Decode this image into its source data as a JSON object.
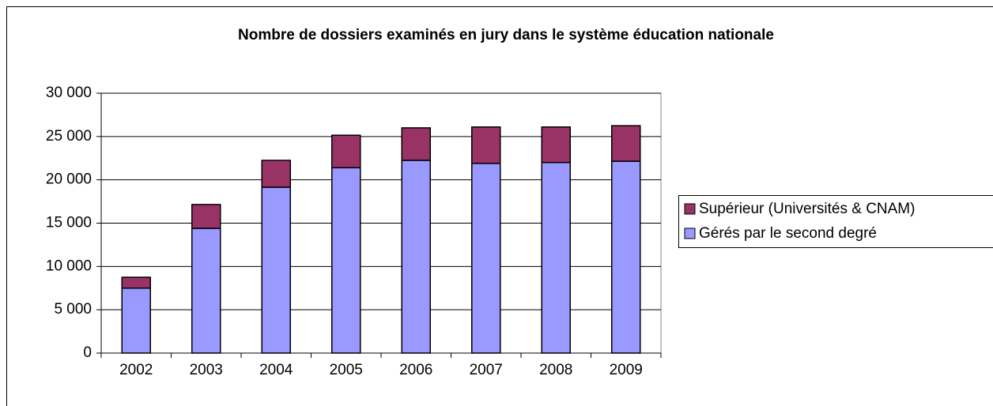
{
  "chart_data": {
    "type": "stacked_bar",
    "title": "Nombre de dossiers examinés en jury dans le système éducation nationale",
    "categories": [
      "2002",
      "2003",
      "2004",
      "2005",
      "2006",
      "2007",
      "2008",
      "2009"
    ],
    "series": [
      {
        "name": "Gérés par le second degré",
        "color": "#9999ff",
        "values": [
          7500,
          14400,
          19150,
          21400,
          22250,
          21900,
          22000,
          22150
        ]
      },
      {
        "name": "Supérieur (Universités & CNAM)",
        "color": "#993366",
        "values": [
          1250,
          2750,
          3100,
          3750,
          3750,
          4200,
          4100,
          4100
        ]
      }
    ],
    "ylim": [
      0,
      30000
    ],
    "yticks": [
      0,
      {
        "value": 5000,
        "label": "5 000"
      },
      {
        "value": 10000,
        "label": "10 000"
      },
      {
        "value": 15000,
        "label": "15 000"
      },
      {
        "value": 20000,
        "label": "20 000"
      },
      {
        "value": 25000,
        "label": "25 000"
      },
      {
        "value": 30000,
        "label": "30 000"
      }
    ],
    "grid": true,
    "legend": "right"
  }
}
